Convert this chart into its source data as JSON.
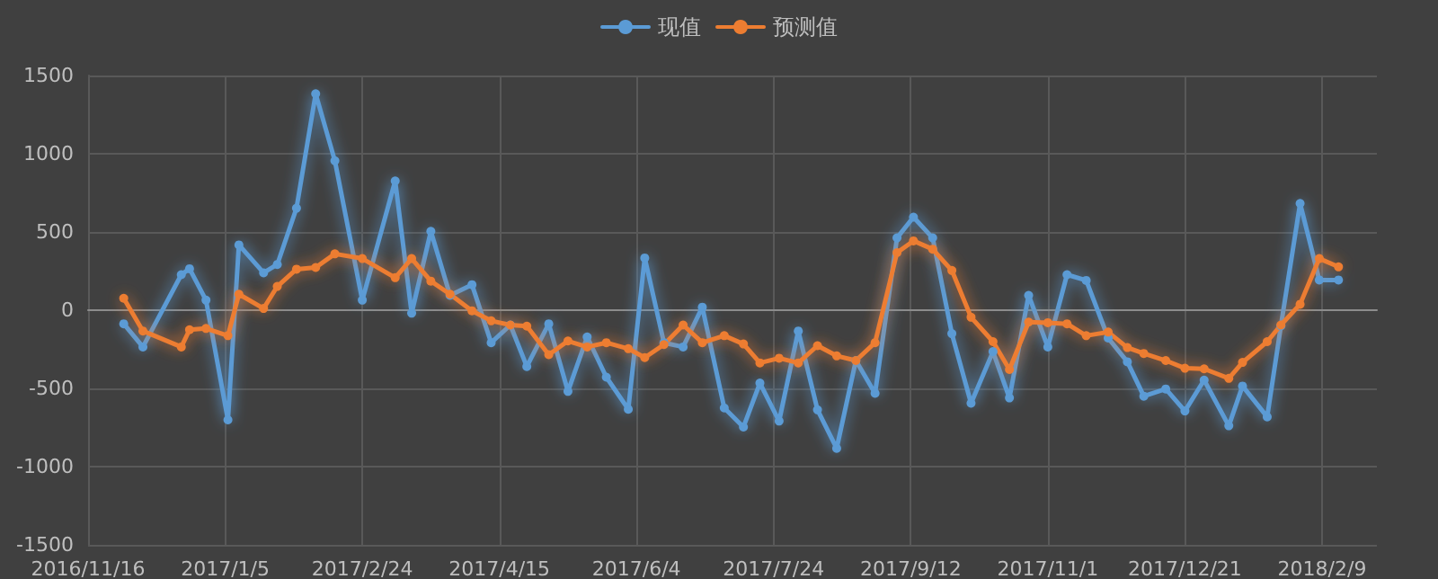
{
  "chart_data": {
    "type": "line",
    "legend": "top",
    "grid": true,
    "marker": "circle",
    "line_style": "solid",
    "x": [
      "2016-11-29",
      "2016-12-06",
      "2016-12-20",
      "2016-12-23",
      "2016-12-29",
      "2017-01-06",
      "2017-01-10",
      "2017-01-19",
      "2017-01-24",
      "2017-01-31",
      "2017-02-07",
      "2017-02-14",
      "2017-02-24",
      "2017-03-08",
      "2017-03-14",
      "2017-03-21",
      "2017-03-28",
      "2017-04-05",
      "2017-04-12",
      "2017-04-19",
      "2017-04-25",
      "2017-05-03",
      "2017-05-10",
      "2017-05-17",
      "2017-05-24",
      "2017-06-01",
      "2017-06-07",
      "2017-06-14",
      "2017-06-21",
      "2017-06-28",
      "2017-07-06",
      "2017-07-13",
      "2017-07-19",
      "2017-07-26",
      "2017-08-02",
      "2017-08-09",
      "2017-08-16",
      "2017-08-23",
      "2017-08-30",
      "2017-09-07",
      "2017-09-13",
      "2017-09-20",
      "2017-09-27",
      "2017-10-04",
      "2017-10-12",
      "2017-10-18",
      "2017-10-25",
      "2017-11-01",
      "2017-11-08",
      "2017-11-15",
      "2017-11-23",
      "2017-11-30",
      "2017-12-06",
      "2017-12-14",
      "2017-12-21",
      "2017-12-28",
      "2018-01-06",
      "2018-01-11",
      "2018-01-20",
      "2018-01-25",
      "2018-02-01",
      "2018-02-08",
      "2018-02-15"
    ],
    "series": [
      {
        "name": "现值",
        "color": "#5b9bd5",
        "values": [
          -87,
          -235,
          227,
          265,
          64,
          -701,
          417,
          239,
          292,
          652,
          1383,
          955,
          64,
          826,
          -19,
          504,
          95,
          163,
          -208,
          -95,
          -360,
          -87,
          -519,
          -171,
          -428,
          -633,
          334,
          -208,
          -235,
          19,
          -625,
          -747,
          -466,
          -709,
          -133,
          -637,
          -883,
          -322,
          -531,
          462,
          595,
          462,
          -150,
          -595,
          -265,
          -561,
          95,
          -235,
          227,
          190,
          -178,
          -330,
          -550,
          -504,
          -644,
          -447,
          -739,
          -485,
          -682,
          -100,
          682,
          193,
          193
        ]
      },
      {
        "name": "预测值",
        "color": "#ed7d31",
        "values": [
          76,
          -133,
          -235,
          -125,
          -117,
          -163,
          102,
          11,
          152,
          262,
          273,
          360,
          330,
          208,
          330,
          186,
          102,
          -4,
          -68,
          -95,
          -102,
          -284,
          -197,
          -235,
          -208,
          -246,
          -303,
          -220,
          -95,
          -208,
          -163,
          -216,
          -337,
          -307,
          -337,
          -227,
          -292,
          -322,
          -208,
          368,
          443,
          390,
          254,
          -45,
          -201,
          -379,
          -76,
          -80,
          -87,
          -163,
          -140,
          -239,
          -277,
          -322,
          -371,
          -375,
          -436,
          -334,
          -201,
          -95,
          38,
          330,
          277
        ]
      }
    ],
    "xlim": [
      "2016-11-16",
      "2018-03-01"
    ],
    "xticks": [
      {
        "value": "2016-11-16",
        "label": "2016/11/16"
      },
      {
        "value": "2017-01-05",
        "label": "2017/1/5"
      },
      {
        "value": "2017-02-24",
        "label": "2017/2/24"
      },
      {
        "value": "2017-04-15",
        "label": "2017/4/15"
      },
      {
        "value": "2017-06-04",
        "label": "2017/6/4"
      },
      {
        "value": "2017-07-24",
        "label": "2017/7/24"
      },
      {
        "value": "2017-09-12",
        "label": "2017/9/12"
      },
      {
        "value": "2017-11-01",
        "label": "2017/11/1"
      },
      {
        "value": "2017-12-21",
        "label": "2017/12/21"
      },
      {
        "value": "2018-02-09",
        "label": "2018/2/9"
      }
    ],
    "ylim": [
      -1500,
      1500
    ],
    "yticks": [
      -1500,
      -1000,
      -500,
      0,
      500,
      1000,
      1500
    ]
  }
}
